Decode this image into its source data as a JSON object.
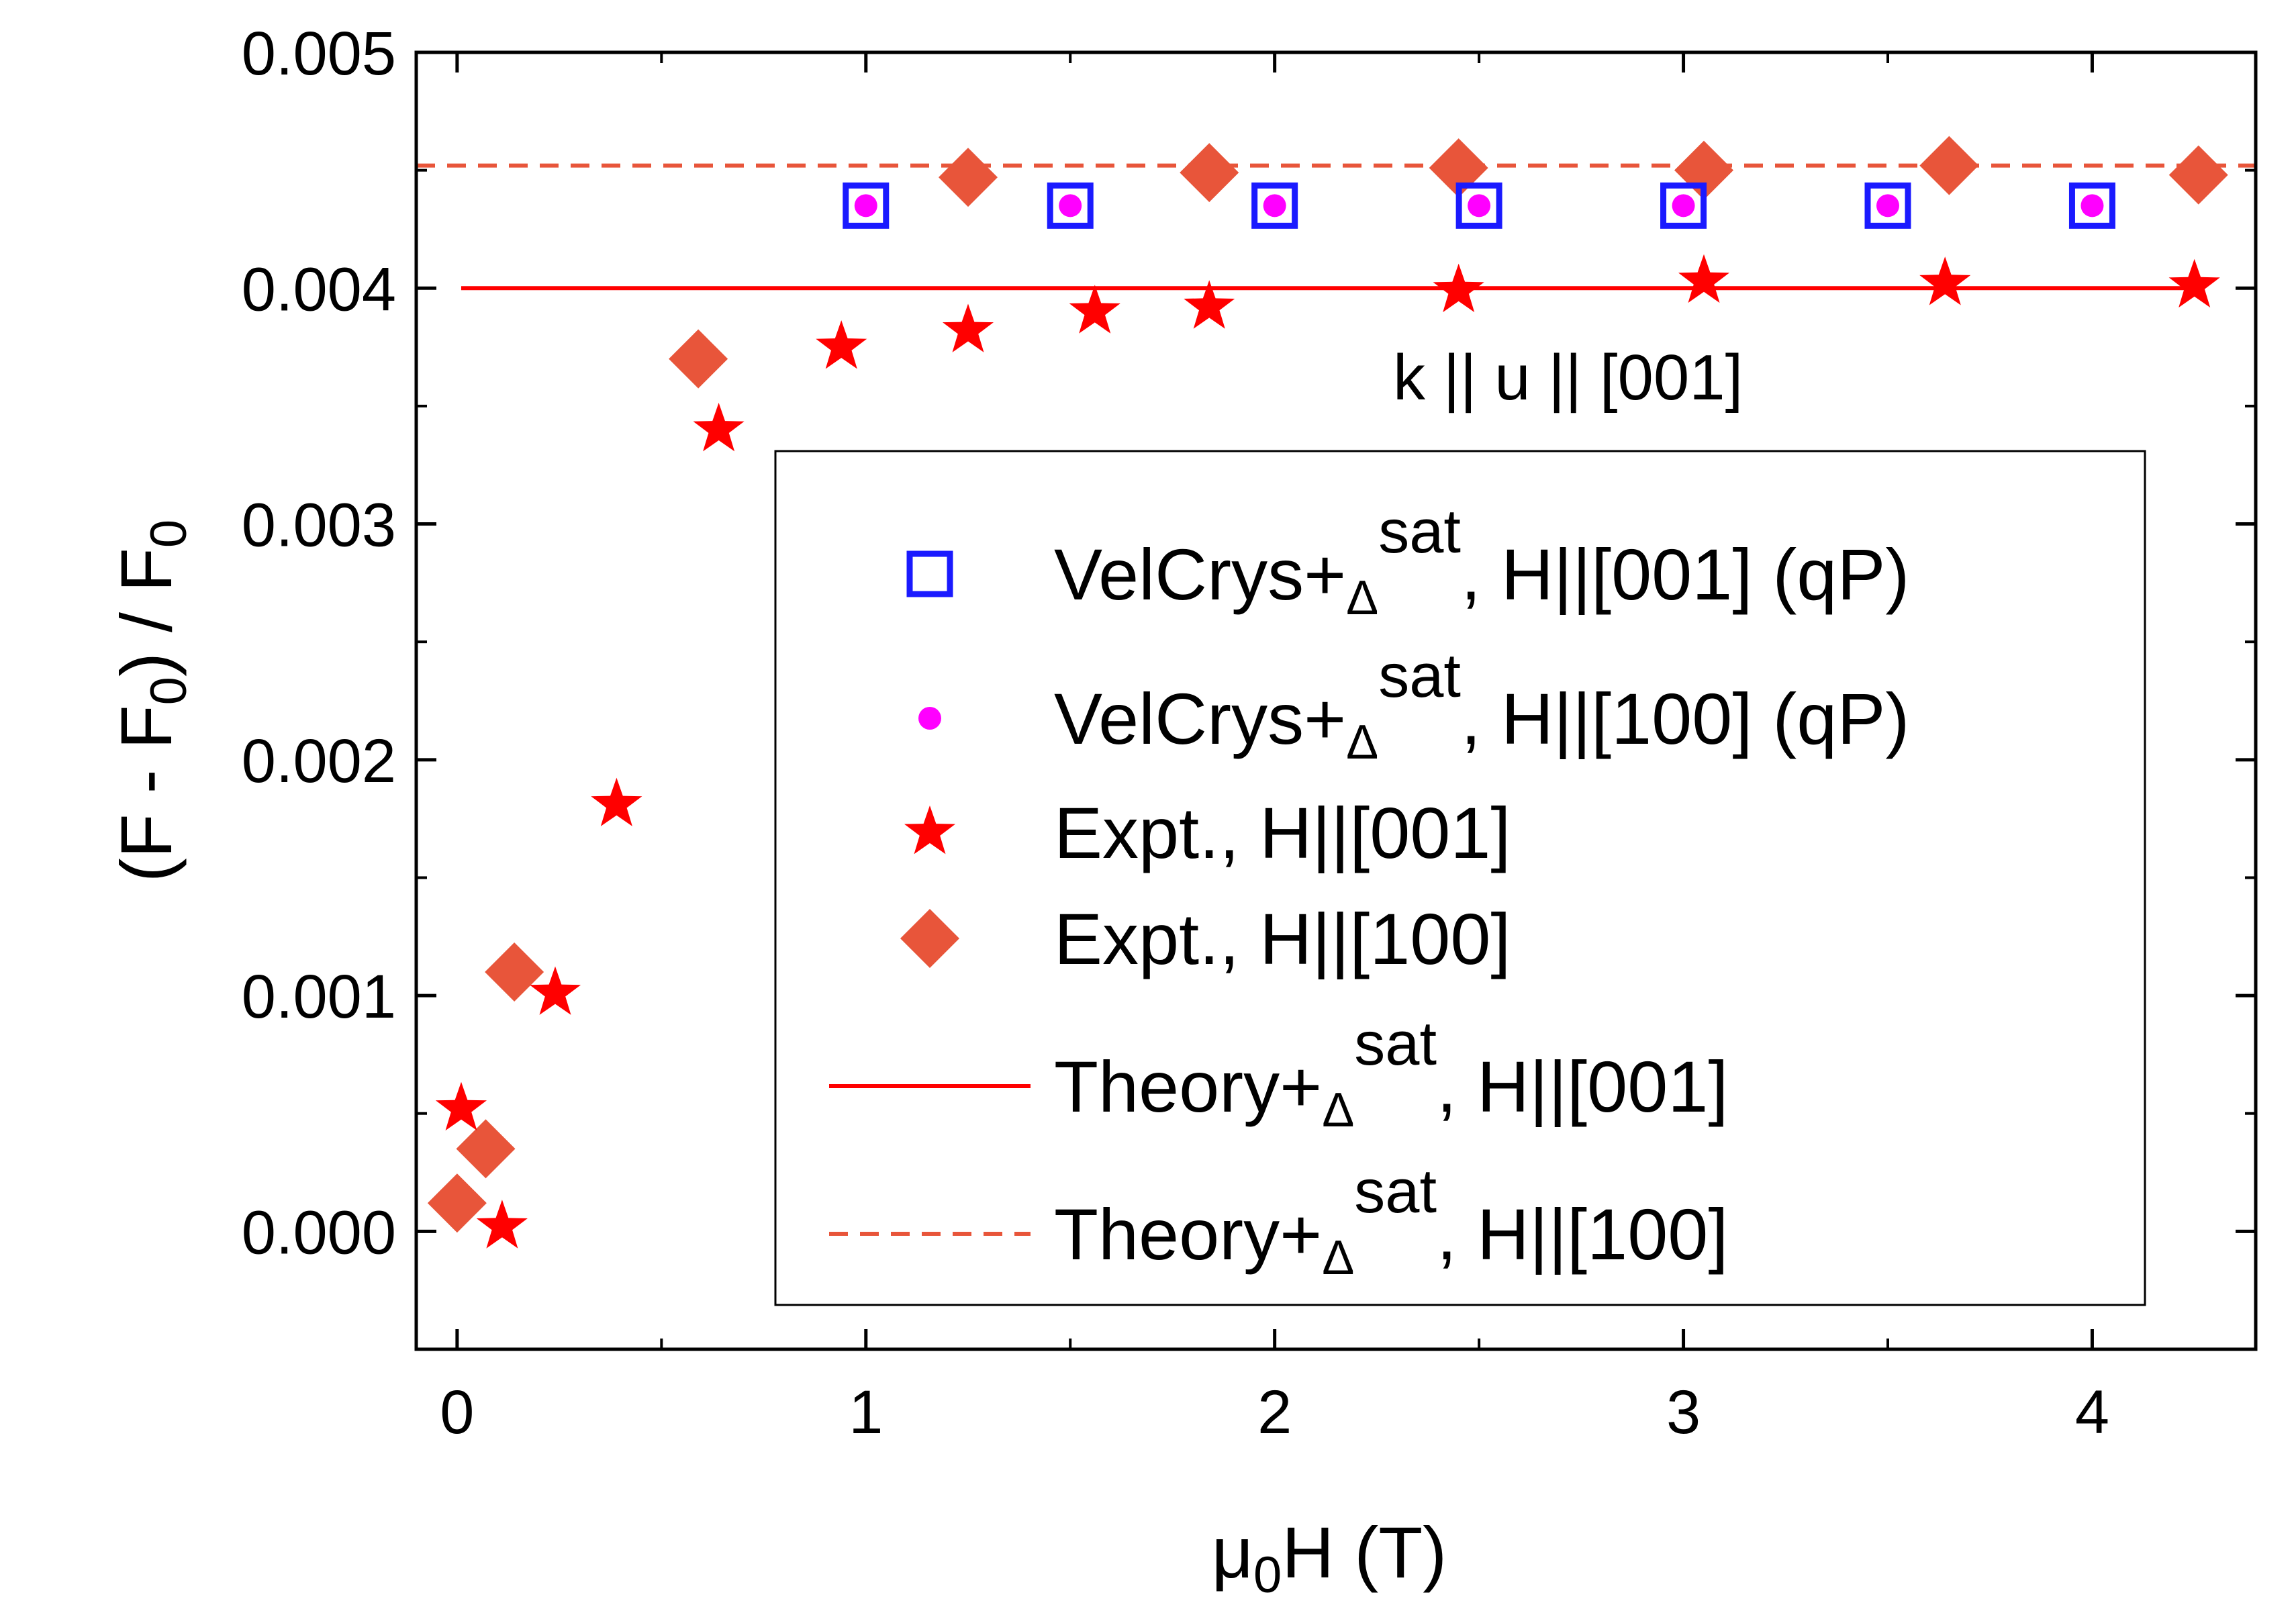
{
  "chart_data": {
    "type": "scatter",
    "xlabel": {
      "main": "μ",
      "sub": "0",
      "rest": "H (T)"
    },
    "ylabel": {
      "p1": "(F - F",
      "s1": "0",
      "p2": ") / F",
      "s2": "0"
    },
    "xlim": [
      -0.1,
      4.4
    ],
    "ylim": [
      -0.0005,
      0.005
    ],
    "x_ticks": [
      0,
      1,
      2,
      3,
      4
    ],
    "x_tick_labels": [
      "0",
      "1",
      "2",
      "3",
      "4"
    ],
    "y_ticks": [
      0.0,
      0.001,
      0.002,
      0.003,
      0.004,
      0.005
    ],
    "y_tick_labels": [
      "0.000",
      "0.001",
      "0.002",
      "0.003",
      "0.004",
      "0.005"
    ],
    "annotation": "k || u || [001]",
    "legend_position": "lower-right inside plot",
    "series": [
      {
        "name": "VelCrys+Δsat, H||[001] (qP)",
        "legend": {
          "pre": "VelCrys+",
          "sub": "Δ",
          "sup": "sat",
          "post": ", H||[001] (qP)"
        },
        "marker": "open-square",
        "color": "#1a1aff",
        "x": [
          1.0,
          1.5,
          2.0,
          2.5,
          3.0,
          3.5,
          4.0
        ],
        "y": [
          0.00435,
          0.00435,
          0.00435,
          0.00435,
          0.00435,
          0.00435,
          0.00435
        ]
      },
      {
        "name": "VelCrys+Δsat, H||[100] (qP)",
        "legend": {
          "pre": "VelCrys+",
          "sub": "Δ",
          "sup": "sat",
          "post": ", H||[100] (qP)"
        },
        "marker": "dot",
        "color": "#ff00ff",
        "x": [
          1.0,
          1.5,
          2.0,
          2.5,
          3.0,
          3.5,
          4.0
        ],
        "y": [
          0.00435,
          0.00435,
          0.00435,
          0.00435,
          0.00435,
          0.00435,
          0.00435
        ]
      },
      {
        "name": "Expt., H||[001]",
        "legend": {
          "pre": "Expt., H||[001]",
          "sub": "",
          "sup": "",
          "post": ""
        },
        "marker": "star",
        "color": "#ff0000",
        "x": [
          0.01,
          0.11,
          0.24,
          0.39,
          0.64,
          0.94,
          1.25,
          1.56,
          1.84,
          2.45,
          3.05,
          3.64,
          4.25
        ],
        "y": [
          0.00052,
          2e-05,
          0.00101,
          0.00181,
          0.0034,
          0.00375,
          0.00382,
          0.0039,
          0.00392,
          0.00399,
          0.00403,
          0.00402,
          0.00401
        ]
      },
      {
        "name": "Expt., H||[100]",
        "legend": {
          "pre": "Expt., H||[100]",
          "sub": "",
          "sup": "",
          "post": ""
        },
        "marker": "diamond",
        "color": "#e8553a",
        "x": [
          0.0,
          0.07,
          0.14,
          0.59,
          1.25,
          1.84,
          2.45,
          3.05,
          3.65,
          4.26
        ],
        "y": [
          0.00012,
          0.00035,
          0.0011,
          0.0037,
          0.00447,
          0.00449,
          0.00451,
          0.0045,
          0.00452,
          0.00448
        ]
      },
      {
        "name": "Theory+Δsat, H||[001]",
        "legend": {
          "pre": "Theory+",
          "sub": "Δ",
          "sup": "sat",
          "post": ", H||[001]"
        },
        "marker": "solid-line",
        "color": "#ff0000",
        "x": [
          0.01,
          4.27
        ],
        "y": [
          0.004,
          0.004
        ]
      },
      {
        "name": "Theory+Δsat, H||[100]",
        "legend": {
          "pre": "Theory+",
          "sub": "Δ",
          "sup": "sat",
          "post": ", H||[100]"
        },
        "marker": "dashed-line",
        "color": "#e8553a",
        "x": [
          -0.1,
          4.4
        ],
        "y": [
          0.00452,
          0.00452
        ]
      }
    ]
  }
}
